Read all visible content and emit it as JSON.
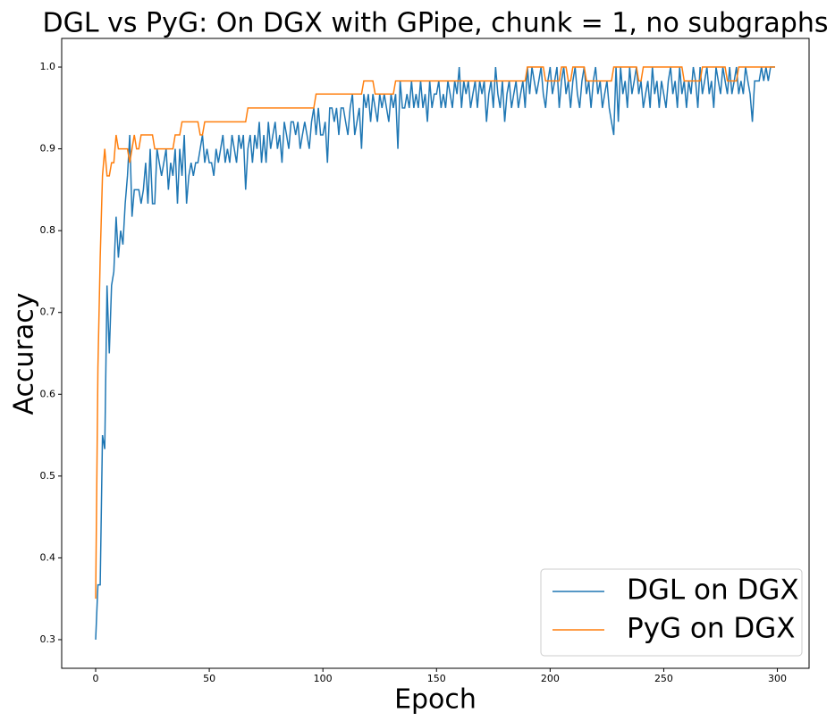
{
  "chart_data": {
    "type": "line",
    "title": "DGL vs PyG: On DGX with GPipe, chunk = 1, no subgraphs",
    "x_label": "Epoch",
    "y_label": "Accuracy",
    "xlim": [
      -14.95,
      313.95
    ],
    "xticks": [
      0,
      50,
      100,
      150,
      200,
      250,
      300
    ],
    "ylim": [
      0.265,
      1.035
    ],
    "yticks": [
      0.3,
      0.4,
      0.5,
      0.6,
      0.7,
      0.8,
      0.9,
      {
        "value": 1,
        "label": "1.0"
      }
    ],
    "legend": "lower right",
    "x": [
      0,
      1,
      2,
      3,
      4,
      5,
      6,
      7,
      8,
      9,
      10,
      11,
      12,
      13,
      14,
      15,
      16,
      17,
      18,
      19,
      20,
      21,
      22,
      23,
      24,
      25,
      26,
      27,
      28,
      29,
      30,
      31,
      32,
      33,
      34,
      35,
      36,
      37,
      38,
      39,
      40,
      41,
      42,
      43,
      44,
      45,
      46,
      47,
      48,
      49,
      50,
      51,
      52,
      53,
      54,
      55,
      56,
      57,
      58,
      59,
      60,
      61,
      62,
      63,
      64,
      65,
      66,
      67,
      68,
      69,
      70,
      71,
      72,
      73,
      74,
      75,
      76,
      77,
      78,
      79,
      80,
      81,
      82,
      83,
      84,
      85,
      86,
      87,
      88,
      89,
      90,
      91,
      92,
      93,
      94,
      95,
      96,
      97,
      98,
      99,
      100,
      101,
      102,
      103,
      104,
      105,
      106,
      107,
      108,
      109,
      110,
      111,
      112,
      113,
      114,
      115,
      116,
      117,
      118,
      119,
      120,
      121,
      122,
      123,
      124,
      125,
      126,
      127,
      128,
      129,
      130,
      131,
      132,
      133,
      134,
      135,
      136,
      137,
      138,
      139,
      140,
      141,
      142,
      143,
      144,
      145,
      146,
      147,
      148,
      149,
      150,
      151,
      152,
      153,
      154,
      155,
      156,
      157,
      158,
      159,
      160,
      161,
      162,
      163,
      164,
      165,
      166,
      167,
      168,
      169,
      170,
      171,
      172,
      173,
      174,
      175,
      176,
      177,
      178,
      179,
      180,
      181,
      182,
      183,
      184,
      185,
      186,
      187,
      188,
      189,
      190,
      191,
      192,
      193,
      194,
      195,
      196,
      197,
      198,
      199,
      200,
      201,
      202,
      203,
      204,
      205,
      206,
      207,
      208,
      209,
      210,
      211,
      212,
      213,
      214,
      215,
      216,
      217,
      218,
      219,
      220,
      221,
      222,
      223,
      224,
      225,
      226,
      227,
      228,
      229,
      230,
      231,
      232,
      233,
      234,
      235,
      236,
      237,
      238,
      239,
      240,
      241,
      242,
      243,
      244,
      245,
      246,
      247,
      248,
      249,
      250,
      251,
      252,
      253,
      254,
      255,
      256,
      257,
      258,
      259,
      260,
      261,
      262,
      263,
      264,
      265,
      266,
      267,
      268,
      269,
      270,
      271,
      272,
      273,
      274,
      275,
      276,
      277,
      278,
      279,
      280,
      281,
      282,
      283,
      284,
      285,
      286,
      287,
      288,
      289,
      290,
      291,
      292,
      293,
      294,
      295,
      296,
      297,
      298,
      299
    ],
    "series": [
      {
        "name": "DGL on DGX",
        "color": "#1f77b4",
        "values": [
          0.3,
          0.367,
          0.367,
          0.55,
          0.533,
          0.733,
          0.65,
          0.733,
          0.75,
          0.817,
          0.767,
          0.8,
          0.783,
          0.833,
          0.867,
          0.917,
          0.817,
          0.85,
          0.85,
          0.85,
          0.833,
          0.85,
          0.883,
          0.833,
          0.9,
          0.833,
          0.833,
          0.9,
          0.883,
          0.867,
          0.883,
          0.9,
          0.85,
          0.883,
          0.867,
          0.9,
          0.833,
          0.9,
          0.867,
          0.917,
          0.833,
          0.867,
          0.883,
          0.867,
          0.883,
          0.883,
          0.9,
          0.917,
          0.883,
          0.9,
          0.883,
          0.883,
          0.867,
          0.9,
          0.883,
          0.9,
          0.917,
          0.883,
          0.9,
          0.883,
          0.917,
          0.9,
          0.883,
          0.917,
          0.9,
          0.917,
          0.85,
          0.9,
          0.917,
          0.883,
          0.917,
          0.9,
          0.933,
          0.883,
          0.917,
          0.883,
          0.933,
          0.9,
          0.917,
          0.933,
          0.9,
          0.917,
          0.883,
          0.933,
          0.917,
          0.9,
          0.933,
          0.933,
          0.917,
          0.933,
          0.9,
          0.917,
          0.933,
          0.917,
          0.9,
          0.933,
          0.95,
          0.917,
          0.95,
          0.917,
          0.917,
          0.933,
          0.883,
          0.95,
          0.95,
          0.933,
          0.95,
          0.917,
          0.95,
          0.95,
          0.933,
          0.917,
          0.95,
          0.967,
          0.917,
          0.933,
          0.95,
          0.9,
          0.967,
          0.95,
          0.967,
          0.933,
          0.967,
          0.95,
          0.933,
          0.967,
          0.95,
          0.967,
          0.95,
          0.933,
          0.967,
          0.95,
          0.967,
          0.9,
          0.983,
          0.95,
          0.95,
          0.967,
          0.95,
          0.983,
          0.95,
          0.967,
          0.95,
          0.983,
          0.95,
          0.967,
          0.933,
          0.983,
          0.95,
          0.967,
          0.967,
          0.983,
          0.95,
          0.967,
          0.95,
          0.983,
          0.967,
          0.95,
          0.983,
          0.967,
          1.0,
          0.95,
          0.983,
          0.967,
          0.983,
          0.95,
          0.967,
          0.983,
          0.95,
          0.983,
          0.967,
          0.983,
          0.933,
          0.967,
          0.983,
          0.95,
          1.0,
          0.967,
          0.95,
          0.983,
          0.933,
          0.967,
          0.983,
          0.95,
          0.967,
          0.983,
          0.95,
          0.967,
          0.983,
          0.95,
          1.0,
          0.967,
          1.0,
          0.983,
          0.967,
          0.983,
          1.0,
          0.967,
          0.95,
          0.983,
          1.0,
          0.967,
          0.983,
          1.0,
          0.95,
          0.983,
          1.0,
          0.967,
          0.983,
          0.95,
          0.983,
          1.0,
          0.967,
          0.95,
          0.983,
          1.0,
          0.967,
          0.983,
          0.95,
          0.983,
          1.0,
          0.967,
          0.983,
          0.95,
          0.967,
          0.983,
          0.95,
          0.933,
          0.917,
          1.0,
          0.933,
          1.0,
          0.967,
          0.983,
          0.95,
          1.0,
          0.967,
          0.983,
          1.0,
          0.967,
          0.983,
          0.95,
          0.967,
          0.983,
          0.95,
          1.0,
          0.967,
          0.983,
          0.95,
          0.983,
          0.967,
          0.95,
          0.983,
          1.0,
          0.967,
          0.983,
          0.95,
          1.0,
          0.967,
          0.983,
          0.95,
          0.983,
          0.967,
          1.0,
          0.983,
          0.95,
          1.0,
          0.967,
          0.983,
          1.0,
          0.967,
          0.983,
          0.95,
          1.0,
          0.983,
          0.967,
          1.0,
          0.983,
          0.967,
          1.0,
          0.967,
          0.983,
          1.0,
          0.967,
          0.983,
          0.967,
          1.0,
          0.983,
          0.967,
          0.933,
          0.983,
          0.983,
          0.983,
          1.0,
          0.983,
          1.0,
          0.983,
          1.0,
          1.0,
          1.0
        ]
      },
      {
        "name": "PyG on DGX",
        "color": "#ff7f0e",
        "values": [
          0.35,
          0.633,
          0.767,
          0.867,
          0.9,
          0.867,
          0.867,
          0.883,
          0.883,
          0.917,
          0.9,
          0.9,
          0.9,
          0.9,
          0.9,
          0.883,
          0.9,
          0.917,
          0.9,
          0.9,
          0.917,
          0.917,
          0.917,
          0.917,
          0.917,
          0.917,
          0.9,
          0.9,
          0.9,
          0.9,
          0.9,
          0.9,
          0.9,
          0.9,
          0.9,
          0.917,
          0.917,
          0.917,
          0.933,
          0.933,
          0.933,
          0.933,
          0.933,
          0.933,
          0.933,
          0.933,
          0.917,
          0.917,
          0.933,
          0.933,
          0.933,
          0.933,
          0.933,
          0.933,
          0.933,
          0.933,
          0.933,
          0.933,
          0.933,
          0.933,
          0.933,
          0.933,
          0.933,
          0.933,
          0.933,
          0.933,
          0.933,
          0.95,
          0.95,
          0.95,
          0.95,
          0.95,
          0.95,
          0.95,
          0.95,
          0.95,
          0.95,
          0.95,
          0.95,
          0.95,
          0.95,
          0.95,
          0.95,
          0.95,
          0.95,
          0.95,
          0.95,
          0.95,
          0.95,
          0.95,
          0.95,
          0.95,
          0.95,
          0.95,
          0.95,
          0.95,
          0.95,
          0.967,
          0.967,
          0.967,
          0.967,
          0.967,
          0.967,
          0.967,
          0.967,
          0.967,
          0.967,
          0.967,
          0.967,
          0.967,
          0.967,
          0.967,
          0.967,
          0.967,
          0.967,
          0.967,
          0.967,
          0.967,
          0.983,
          0.983,
          0.983,
          0.983,
          0.983,
          0.967,
          0.967,
          0.967,
          0.967,
          0.967,
          0.967,
          0.967,
          0.967,
          0.967,
          0.983,
          0.983,
          0.983,
          0.983,
          0.983,
          0.983,
          0.983,
          0.983,
          0.983,
          0.983,
          0.983,
          0.983,
          0.983,
          0.983,
          0.983,
          0.983,
          0.983,
          0.983,
          0.983,
          0.983,
          0.983,
          0.983,
          0.983,
          0.983,
          0.983,
          0.983,
          0.983,
          0.983,
          0.983,
          0.983,
          0.983,
          0.983,
          0.983,
          0.983,
          0.983,
          0.983,
          0.983,
          0.983,
          0.983,
          0.983,
          0.983,
          0.983,
          0.983,
          0.983,
          0.983,
          0.983,
          0.983,
          0.983,
          0.983,
          0.983,
          0.983,
          0.983,
          0.983,
          0.983,
          0.983,
          0.983,
          0.983,
          0.983,
          1.0,
          1.0,
          1.0,
          1.0,
          1.0,
          1.0,
          1.0,
          1.0,
          0.983,
          0.983,
          0.983,
          0.983,
          0.983,
          0.983,
          0.983,
          1.0,
          1.0,
          1.0,
          0.983,
          0.983,
          1.0,
          1.0,
          1.0,
          1.0,
          1.0,
          1.0,
          0.983,
          0.983,
          0.983,
          0.983,
          0.983,
          0.983,
          0.983,
          0.983,
          0.983,
          0.983,
          0.983,
          0.983,
          1.0,
          1.0,
          1.0,
          1.0,
          1.0,
          1.0,
          1.0,
          1.0,
          1.0,
          1.0,
          1.0,
          0.983,
          0.983,
          1.0,
          1.0,
          1.0,
          1.0,
          1.0,
          1.0,
          1.0,
          1.0,
          1.0,
          1.0,
          1.0,
          1.0,
          1.0,
          1.0,
          1.0,
          1.0,
          1.0,
          1.0,
          0.983,
          0.983,
          0.983,
          0.983,
          0.983,
          0.983,
          0.983,
          0.983,
          1.0,
          1.0,
          1.0,
          1.0,
          1.0,
          1.0,
          1.0,
          1.0,
          1.0,
          1.0,
          1.0,
          0.983,
          0.983,
          0.983,
          0.983,
          0.983,
          1.0,
          1.0,
          1.0,
          1.0,
          1.0,
          1.0,
          1.0,
          1.0,
          1.0,
          1.0,
          1.0,
          1.0,
          1.0,
          1.0,
          1.0,
          1.0,
          1.0
        ]
      }
    ]
  }
}
